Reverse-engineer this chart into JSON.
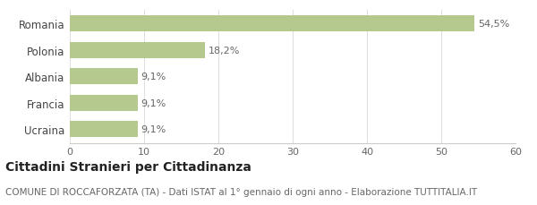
{
  "categories": [
    "Ucraina",
    "Francia",
    "Albania",
    "Polonia",
    "Romania"
  ],
  "values": [
    9.1,
    9.1,
    9.1,
    18.2,
    54.5
  ],
  "labels": [
    "9,1%",
    "9,1%",
    "9,1%",
    "18,2%",
    "54,5%"
  ],
  "bar_color": "#b5c98e",
  "background_color": "#ffffff",
  "xlim": [
    0,
    60
  ],
  "xticks": [
    0,
    10,
    20,
    30,
    40,
    50,
    60
  ],
  "title": "Cittadini Stranieri per Cittadinanza",
  "subtitle": "COMUNE DI ROCCAFORZATA (TA) - Dati ISTAT al 1° gennaio di ogni anno - Elaborazione TUTTITALIA.IT",
  "title_fontsize": 10,
  "subtitle_fontsize": 7.5,
  "label_fontsize": 8,
  "ytick_fontsize": 8.5,
  "xtick_fontsize": 8
}
